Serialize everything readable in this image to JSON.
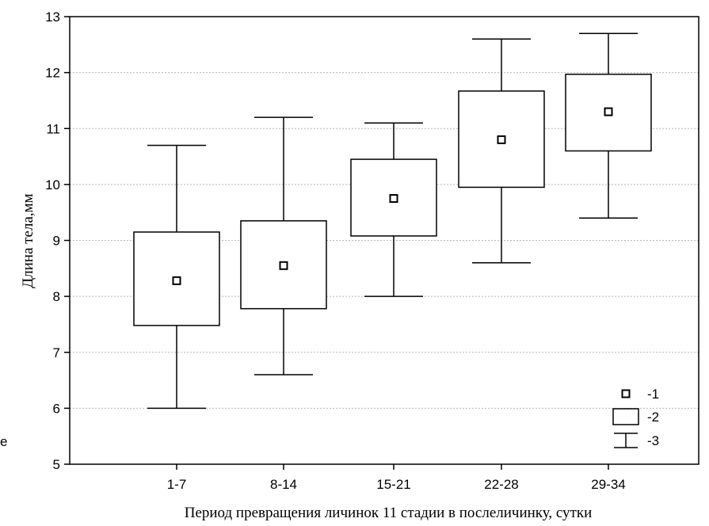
{
  "chart_data": {
    "type": "box",
    "xlabel": "Период превращения личинок 11 стадии в послеличинку, сутки",
    "ylabel": "Длина тела,мм",
    "ylim": [
      5,
      13
    ],
    "yticks": [
      5,
      6,
      7,
      8,
      9,
      10,
      11,
      12,
      13
    ],
    "grid": true,
    "categories": [
      "1-7",
      "8-14",
      "15-21",
      "22-28",
      "29-34"
    ],
    "mean": [
      8.28,
      8.55,
      9.75,
      10.8,
      11.3
    ],
    "box_low": [
      7.48,
      7.78,
      9.08,
      9.95,
      10.6
    ],
    "box_high": [
      9.15,
      9.35,
      10.45,
      11.67,
      11.97
    ],
    "whisker_low": [
      6.0,
      6.6,
      8.0,
      8.6,
      9.4
    ],
    "whisker_high": [
      10.7,
      11.2,
      11.1,
      12.6,
      12.7
    ],
    "legend": {
      "placement": "bottom-right",
      "items": [
        {
          "symbol": "mean-square",
          "label": "-1"
        },
        {
          "symbol": "box",
          "label": "-2"
        },
        {
          "symbol": "whisker",
          "label": "-3"
        }
      ]
    },
    "stray_text": "e"
  }
}
